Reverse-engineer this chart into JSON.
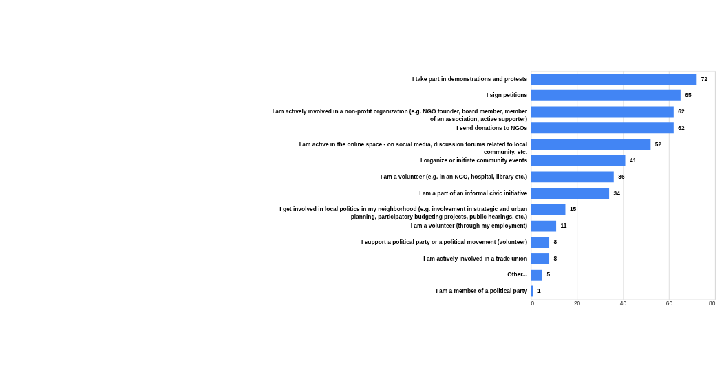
{
  "chart_data": {
    "type": "bar",
    "orientation": "horizontal",
    "categories": [
      "I take part in demonstrations and protests",
      "I sign petitions",
      "I am actively involved in a non-profit organization (e.g. NGO founder, board member, member of an association, active supporter)",
      "I send donations to NGOs",
      "I am active in the online space - on social media, discussion forums related to local community, etc.",
      "I organize or initiate community events",
      "I am a volunteer (e.g. in an NGO, hospital, library etc.)",
      "I am a part of an informal civic initiative",
      "I get involved in local politics in my neighborhood (e.g. involvement in strategic and urban planning, participatory budgeting projects, public hearings, etc.)",
      "I am a volunteer (through my employment)",
      "I support a political party or a political movement (volunteer)",
      "I am actively involved in a trade union",
      "Other...",
      "I am a member of a political party"
    ],
    "values": [
      72,
      65,
      62,
      62,
      52,
      41,
      36,
      34,
      15,
      11,
      8,
      8,
      5,
      1
    ],
    "color": "#4285f4",
    "xlim": [
      0,
      80
    ],
    "xticks": [
      0,
      20,
      40,
      60,
      80
    ],
    "grid": "x",
    "data_labels": true
  }
}
